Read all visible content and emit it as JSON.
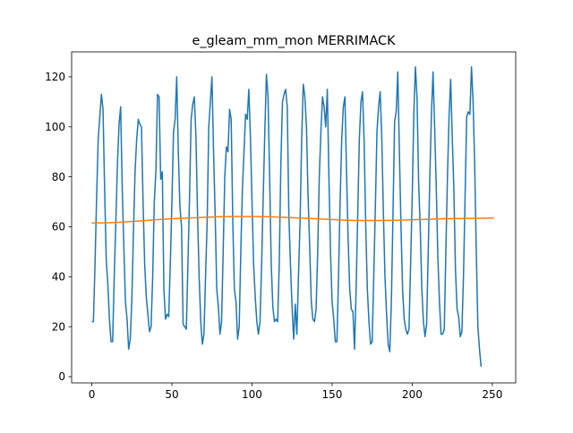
{
  "chart_data": {
    "type": "line",
    "title": "e_gleam_mm_mon MERRIMACK",
    "xlabel": "",
    "ylabel": "",
    "xlim": [
      -12.6,
      264.6
    ],
    "ylim": [
      -2.5,
      130.0
    ],
    "x_ticks": [
      0,
      50,
      100,
      150,
      200,
      250
    ],
    "y_ticks": [
      0,
      20,
      40,
      60,
      80,
      100,
      120
    ],
    "grid": false,
    "legend": "none",
    "series": [
      {
        "color": "#1f77b4",
        "points": [
          [
            0,
            22
          ],
          [
            1,
            22
          ],
          [
            2,
            45
          ],
          [
            3,
            72
          ],
          [
            4,
            95
          ],
          [
            5,
            104
          ],
          [
            6,
            113
          ],
          [
            7,
            107
          ],
          [
            8,
            75
          ],
          [
            9,
            47
          ],
          [
            10,
            37
          ],
          [
            11,
            23
          ],
          [
            12,
            14
          ],
          [
            13,
            14
          ],
          [
            14,
            40
          ],
          [
            15,
            62
          ],
          [
            16,
            85
          ],
          [
            17,
            101
          ],
          [
            18,
            108
          ],
          [
            19,
            75
          ],
          [
            20,
            52
          ],
          [
            21,
            30
          ],
          [
            22,
            23
          ],
          [
            23,
            11
          ],
          [
            24,
            15
          ],
          [
            25,
            31
          ],
          [
            26,
            58
          ],
          [
            27,
            82
          ],
          [
            28,
            95
          ],
          [
            29,
            103
          ],
          [
            30,
            101
          ],
          [
            31,
            100
          ],
          [
            32,
            70
          ],
          [
            33,
            45
          ],
          [
            34,
            32
          ],
          [
            35,
            25
          ],
          [
            36,
            18
          ],
          [
            37,
            20
          ],
          [
            38,
            40
          ],
          [
            39,
            70
          ],
          [
            40,
            82
          ],
          [
            41,
            113
          ],
          [
            42,
            112
          ],
          [
            43,
            79
          ],
          [
            44,
            82
          ],
          [
            45,
            35
          ],
          [
            46,
            23
          ],
          [
            47,
            25
          ],
          [
            48,
            24
          ],
          [
            49,
            45
          ],
          [
            50,
            70
          ],
          [
            51,
            98
          ],
          [
            52,
            103
          ],
          [
            53,
            120
          ],
          [
            54,
            90
          ],
          [
            55,
            68
          ],
          [
            56,
            60
          ],
          [
            57,
            21
          ],
          [
            58,
            20
          ],
          [
            59,
            19
          ],
          [
            60,
            45
          ],
          [
            61,
            72
          ],
          [
            62,
            103
          ],
          [
            63,
            109
          ],
          [
            64,
            112
          ],
          [
            65,
            96
          ],
          [
            66,
            65
          ],
          [
            67,
            40
          ],
          [
            68,
            22
          ],
          [
            69,
            13
          ],
          [
            70,
            17
          ],
          [
            71,
            40
          ],
          [
            72,
            62
          ],
          [
            73,
            100
          ],
          [
            74,
            110
          ],
          [
            75,
            120
          ],
          [
            76,
            90
          ],
          [
            77,
            65
          ],
          [
            78,
            35
          ],
          [
            79,
            28
          ],
          [
            80,
            17
          ],
          [
            81,
            22
          ],
          [
            82,
            50
          ],
          [
            83,
            80
          ],
          [
            84,
            92
          ],
          [
            85,
            90
          ],
          [
            86,
            107
          ],
          [
            87,
            103
          ],
          [
            88,
            62
          ],
          [
            89,
            35
          ],
          [
            90,
            30
          ],
          [
            91,
            15
          ],
          [
            92,
            20
          ],
          [
            93,
            50
          ],
          [
            94,
            75
          ],
          [
            95,
            90
          ],
          [
            96,
            105
          ],
          [
            97,
            103
          ],
          [
            98,
            115
          ],
          [
            99,
            96
          ],
          [
            100,
            70
          ],
          [
            101,
            45
          ],
          [
            102,
            32
          ],
          [
            103,
            22
          ],
          [
            104,
            17
          ],
          [
            105,
            22
          ],
          [
            106,
            45
          ],
          [
            107,
            72
          ],
          [
            108,
            98
          ],
          [
            109,
            121
          ],
          [
            110,
            112
          ],
          [
            111,
            80
          ],
          [
            112,
            45
          ],
          [
            113,
            28
          ],
          [
            114,
            22
          ],
          [
            115,
            23
          ],
          [
            116,
            22
          ],
          [
            117,
            45
          ],
          [
            118,
            85
          ],
          [
            119,
            110
          ],
          [
            120,
            113
          ],
          [
            121,
            115
          ],
          [
            122,
            108
          ],
          [
            123,
            65
          ],
          [
            124,
            45
          ],
          [
            125,
            28
          ],
          [
            126,
            15
          ],
          [
            127,
            29
          ],
          [
            128,
            17
          ],
          [
            129,
            40
          ],
          [
            130,
            62
          ],
          [
            131,
            95
          ],
          [
            132,
            117
          ],
          [
            133,
            112
          ],
          [
            134,
            100
          ],
          [
            135,
            72
          ],
          [
            136,
            52
          ],
          [
            137,
            30
          ],
          [
            138,
            23
          ],
          [
            139,
            22
          ],
          [
            140,
            27
          ],
          [
            141,
            50
          ],
          [
            142,
            80
          ],
          [
            143,
            98
          ],
          [
            144,
            112
          ],
          [
            145,
            108
          ],
          [
            146,
            100
          ],
          [
            147,
            115
          ],
          [
            148,
            80
          ],
          [
            149,
            50
          ],
          [
            150,
            30
          ],
          [
            151,
            23
          ],
          [
            152,
            14
          ],
          [
            153,
            14
          ],
          [
            154,
            40
          ],
          [
            155,
            70
          ],
          [
            156,
            95
          ],
          [
            157,
            108
          ],
          [
            158,
            112
          ],
          [
            159,
            82
          ],
          [
            160,
            55
          ],
          [
            161,
            35
          ],
          [
            162,
            27
          ],
          [
            163,
            26
          ],
          [
            164,
            11
          ],
          [
            165,
            35
          ],
          [
            166,
            65
          ],
          [
            167,
            95
          ],
          [
            168,
            110
          ],
          [
            169,
            114
          ],
          [
            170,
            94
          ],
          [
            171,
            60
          ],
          [
            172,
            35
          ],
          [
            173,
            22
          ],
          [
            174,
            13
          ],
          [
            175,
            14
          ],
          [
            176,
            40
          ],
          [
            177,
            68
          ],
          [
            178,
            98
          ],
          [
            179,
            108
          ],
          [
            180,
            114
          ],
          [
            181,
            96
          ],
          [
            182,
            66
          ],
          [
            183,
            40
          ],
          [
            184,
            25
          ],
          [
            185,
            13
          ],
          [
            186,
            10
          ],
          [
            187,
            30
          ],
          [
            188,
            65
          ],
          [
            189,
            102
          ],
          [
            190,
            106
          ],
          [
            191,
            122
          ],
          [
            192,
            90
          ],
          [
            193,
            60
          ],
          [
            194,
            35
          ],
          [
            195,
            23
          ],
          [
            196,
            19
          ],
          [
            197,
            17
          ],
          [
            198,
            19
          ],
          [
            199,
            45
          ],
          [
            200,
            72
          ],
          [
            201,
            105
          ],
          [
            202,
            124
          ],
          [
            203,
            112
          ],
          [
            204,
            78
          ],
          [
            205,
            60
          ],
          [
            206,
            35
          ],
          [
            207,
            22
          ],
          [
            208,
            16
          ],
          [
            209,
            21
          ],
          [
            210,
            50
          ],
          [
            211,
            80
          ],
          [
            212,
            105
          ],
          [
            213,
            122
          ],
          [
            214,
            100
          ],
          [
            215,
            76
          ],
          [
            216,
            48
          ],
          [
            217,
            30
          ],
          [
            218,
            17
          ],
          [
            219,
            17
          ],
          [
            220,
            19
          ],
          [
            221,
            50
          ],
          [
            222,
            80
          ],
          [
            223,
            104
          ],
          [
            224,
            119
          ],
          [
            225,
            96
          ],
          [
            226,
            75
          ],
          [
            227,
            43
          ],
          [
            228,
            27
          ],
          [
            229,
            24
          ],
          [
            230,
            16
          ],
          [
            231,
            18
          ],
          [
            232,
            40
          ],
          [
            233,
            72
          ],
          [
            234,
            104
          ],
          [
            235,
            106
          ],
          [
            236,
            105
          ],
          [
            237,
            124
          ],
          [
            238,
            110
          ],
          [
            239,
            85
          ],
          [
            240,
            50
          ],
          [
            241,
            20
          ],
          [
            242,
            11
          ],
          [
            243,
            4
          ]
        ]
      },
      {
        "color": "#ff7f0e",
        "points": [
          [
            0,
            61.5
          ],
          [
            10,
            61.6
          ],
          [
            20,
            61.9
          ],
          [
            30,
            62.3
          ],
          [
            40,
            62.8
          ],
          [
            50,
            63.2
          ],
          [
            60,
            63.5
          ],
          [
            70,
            63.8
          ],
          [
            80,
            64.0
          ],
          [
            90,
            64.1
          ],
          [
            100,
            64.1
          ],
          [
            110,
            64.0
          ],
          [
            120,
            63.8
          ],
          [
            130,
            63.5
          ],
          [
            140,
            63.2
          ],
          [
            150,
            62.9
          ],
          [
            160,
            62.6
          ],
          [
            170,
            62.5
          ],
          [
            180,
            62.5
          ],
          [
            190,
            62.6
          ],
          [
            200,
            62.8
          ],
          [
            210,
            63.0
          ],
          [
            220,
            63.2
          ],
          [
            230,
            63.3
          ],
          [
            240,
            63.4
          ],
          [
            251,
            63.5
          ]
        ]
      }
    ]
  }
}
